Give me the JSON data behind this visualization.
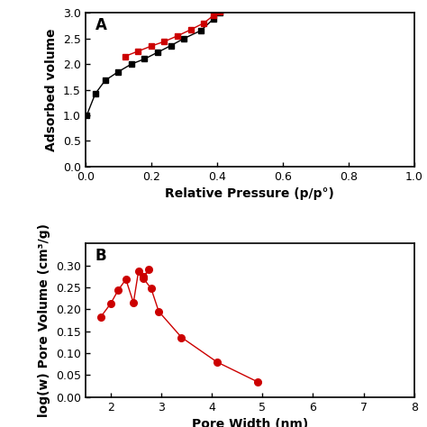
{
  "plot_A": {
    "label": "A",
    "adsorption_x": [
      0.004,
      0.03,
      0.06,
      0.1,
      0.14,
      0.18,
      0.22,
      0.26,
      0.3,
      0.35,
      0.39,
      0.41
    ],
    "adsorption_y": [
      1.0,
      1.42,
      1.68,
      1.85,
      2.0,
      2.1,
      2.23,
      2.36,
      2.5,
      2.65,
      2.88,
      3.0
    ],
    "desorption_x": [
      0.41,
      0.39,
      0.36,
      0.32,
      0.28,
      0.24,
      0.2,
      0.16,
      0.12
    ],
    "desorption_y": [
      3.02,
      2.95,
      2.8,
      2.67,
      2.55,
      2.44,
      2.35,
      2.25,
      2.15
    ],
    "xlabel": "Relative Pressure (p/p°)",
    "ylabel": "Adsorbed volume",
    "xlim": [
      0.0,
      1.0
    ],
    "ylim": [
      0.0,
      3.0
    ],
    "xticks": [
      0.0,
      0.2,
      0.4,
      0.6,
      0.8,
      1.0
    ],
    "yticks": [
      0.0,
      0.5,
      1.0,
      1.5,
      2.0,
      2.5,
      3.0
    ],
    "adsorption_color": "#000000",
    "desorption_color": "#cc0000",
    "marker_adsorption": "s",
    "marker_desorption": "s"
  },
  "plot_B": {
    "label": "B",
    "x": [
      1.8,
      2.0,
      2.15,
      2.3,
      2.45,
      2.55,
      2.65,
      2.75,
      2.65,
      2.8,
      2.95,
      3.4,
      4.1,
      4.9
    ],
    "y": [
      0.182,
      0.213,
      0.244,
      0.268,
      0.215,
      0.287,
      0.275,
      0.29,
      0.27,
      0.247,
      0.195,
      0.136,
      0.08,
      0.035
    ],
    "xlabel": "Pore Width (nm)",
    "ylabel": "log(w) Pore Volume (cm³/g)",
    "xlim": [
      1.5,
      8.0
    ],
    "ylim": [
      0.0,
      0.35
    ],
    "yticks": [
      0.0,
      0.05,
      0.1,
      0.15,
      0.2,
      0.25,
      0.3
    ],
    "color": "#cc0000",
    "marker": "o"
  },
  "figure_bg": "#ffffff",
  "axes_bg": "#ffffff",
  "label_fontsize": 10,
  "tick_fontsize": 9,
  "annot_fontsize": 12
}
